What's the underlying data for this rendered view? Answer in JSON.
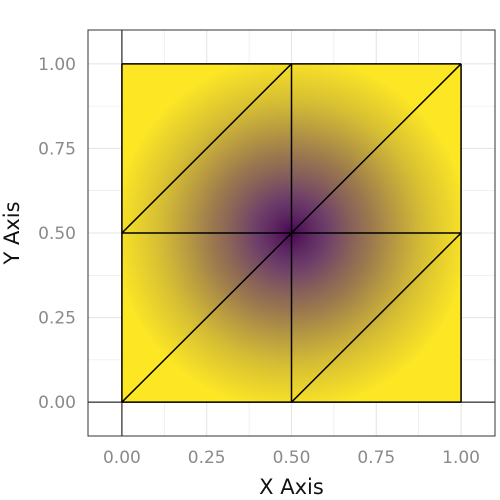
{
  "chart_data": {
    "type": "heatmap",
    "title": "",
    "xlabel": "X Axis",
    "ylabel": "Y Axis",
    "xlim": [
      -0.1,
      1.1
    ],
    "ylim": [
      -0.1,
      1.1
    ],
    "x_ticks": [
      "0.00",
      "0.25",
      "0.50",
      "0.75",
      "1.00"
    ],
    "y_ticks": [
      "0.00",
      "0.25",
      "0.50",
      "0.75",
      "1.00"
    ],
    "x_tick_values": [
      0,
      0.25,
      0.5,
      0.75,
      1
    ],
    "y_tick_values": [
      0,
      0.25,
      0.5,
      0.75,
      1
    ],
    "grid": true,
    "reference_lines": {
      "x": 0,
      "y": 0
    },
    "surface": {
      "extent": {
        "x": [
          0,
          1
        ],
        "y": [
          0,
          1
        ]
      },
      "center": [
        0.5,
        0.5
      ],
      "color_center": "#440154",
      "color_edge": "#fde725"
    },
    "mesh": {
      "vertices": [
        [
          0,
          0
        ],
        [
          0.5,
          0
        ],
        [
          1,
          0
        ],
        [
          0,
          0.5
        ],
        [
          0.5,
          0.5
        ],
        [
          1,
          0.5
        ],
        [
          0,
          1
        ],
        [
          0.5,
          1
        ],
        [
          1,
          1
        ]
      ],
      "edges": [
        [
          0,
          1
        ],
        [
          1,
          2
        ],
        [
          3,
          4
        ],
        [
          4,
          5
        ],
        [
          6,
          7
        ],
        [
          7,
          8
        ],
        [
          0,
          3
        ],
        [
          3,
          6
        ],
        [
          1,
          4
        ],
        [
          4,
          7
        ],
        [
          2,
          5
        ],
        [
          5,
          8
        ],
        [
          0,
          4
        ],
        [
          4,
          8
        ],
        [
          3,
          7
        ],
        [
          1,
          5
        ]
      ]
    },
    "colors": {
      "grid": "#e6e6e6",
      "panel_border": "#333333",
      "reference_line": "#000000",
      "mesh_line": "#000000"
    }
  }
}
